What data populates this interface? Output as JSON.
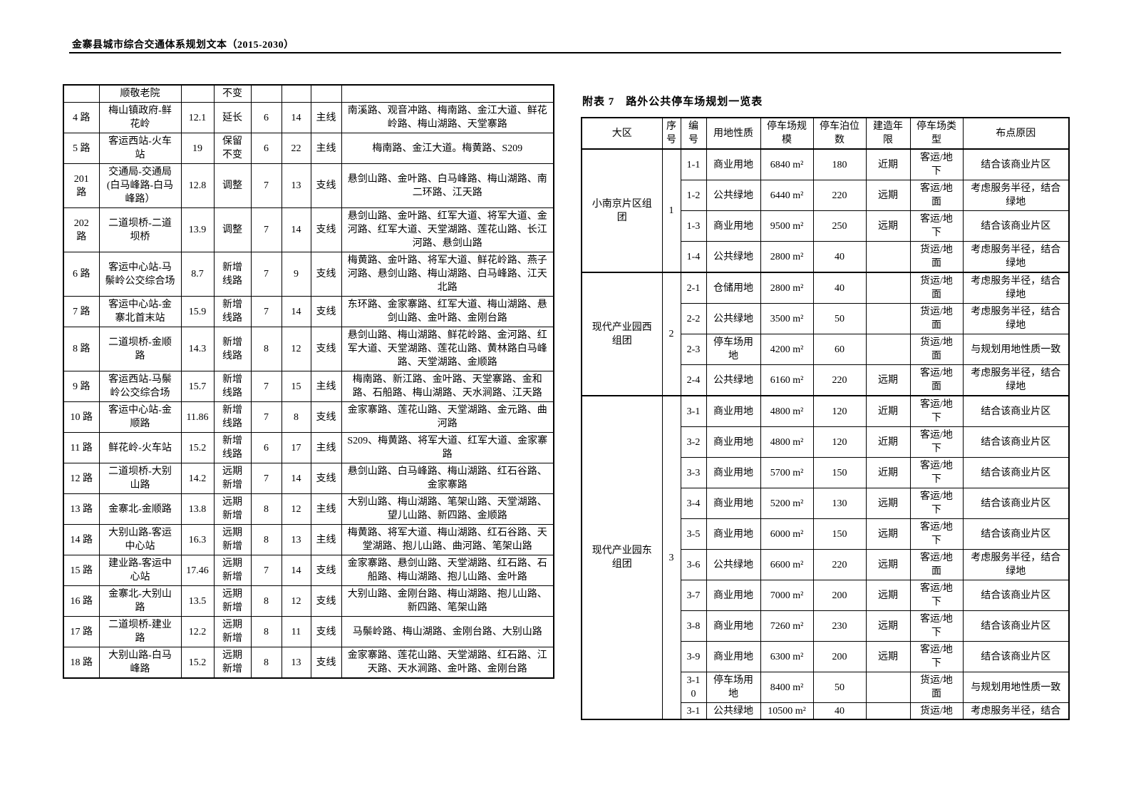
{
  "page": {
    "header_title": "金寨县城市综合交通体系规划文本（2015-2030）"
  },
  "bus_table": {
    "carryover_row": [
      "",
      "顺敬老院",
      "",
      "不变",
      "",
      "",
      "",
      ""
    ],
    "rows": [
      [
        "4 路",
        "梅山镇政府-鲜\n花岭",
        "12.1",
        "延长",
        "6",
        "14",
        "主线",
        "南溪路、观音冲路、梅南路、金江大道、鲜花岭路、梅山湖路、天堂寨路"
      ],
      [
        "5 路",
        "客运西站-火车\n站",
        "19",
        "保留\n不变",
        "6",
        "22",
        "主线",
        "梅南路、金江大道。梅黄路、S209"
      ],
      [
        "201\n路",
        "交通局-交通局\n(白马峰路-白马\n峰路）",
        "12.8",
        "调整",
        "7",
        "13",
        "支线",
        "悬剑山路、金叶路、白马峰路、梅山湖路、南二环路、江天路"
      ],
      [
        "202\n路",
        "二道坝桥-二道\n坝桥",
        "13.9",
        "调整",
        "7",
        "14",
        "支线",
        "悬剑山路、金叶路、红军大道、将军大道、金河路、红军大道、天堂湖路、莲花山路、长江河路、悬剑山路"
      ],
      [
        "6 路",
        "客运中心站-马\n鬃岭公交综合场",
        "8.7",
        "新增\n线路",
        "7",
        "9",
        "支线",
        "梅黄路、金叶路、将军大道、鲜花岭路、燕子河路、悬剑山路、梅山湖路、白马峰路、江天北路"
      ],
      [
        "7 路",
        "客运中心站-金\n寨北首末站",
        "15.9",
        "新增\n线路",
        "7",
        "14",
        "支线",
        "东环路、金家寨路、红军大道、梅山湖路、悬剑山路、金叶路、金刚台路"
      ],
      [
        "8 路",
        "二道坝桥-金顺\n路",
        "14.3",
        "新增\n线路",
        "8",
        "12",
        "支线",
        "悬剑山路、梅山湖路、鲜花岭路、金河路、红军大道、天堂湖路、莲花山路、黄林路白马峰路、天堂湖路、金顺路"
      ],
      [
        "9 路",
        "客运西站-马鬃\n岭公交综合场",
        "15.7",
        "新增\n线路",
        "7",
        "15",
        "主线",
        "梅南路、新江路、金叶路、天堂寨路、金和路、石船路、梅山湖路、天水涧路、江天路"
      ],
      [
        "10 路",
        "客运中心站-金\n顺路",
        "11.86",
        "新增\n线路",
        "7",
        "8",
        "支线",
        "金家寨路、莲花山路、天堂湖路、金元路、曲河路"
      ],
      [
        "11 路",
        "鲜花岭-火车站",
        "15.2",
        "新增\n线路",
        "6",
        "17",
        "主线",
        "S209、梅黄路、将军大道、红军大道、金家寨路"
      ],
      [
        "12 路",
        "二道坝桥-大别\n山路",
        "14.2",
        "远期\n新增",
        "7",
        "14",
        "支线",
        "悬剑山路、白马峰路、梅山湖路、红石谷路、金家寨路"
      ],
      [
        "13 路",
        "金寨北-金顺路",
        "13.8",
        "远期\n新增",
        "8",
        "12",
        "主线",
        "大别山路、梅山湖路、笔架山路、天堂湖路、望儿山路、新四路、金顺路"
      ],
      [
        "14 路",
        "大别山路-客运\n中心站",
        "16.3",
        "远期\n新增",
        "8",
        "13",
        "主线",
        "梅黄路、将军大道、梅山湖路、红石谷路、天堂湖路、抱儿山路、曲河路、笔架山路"
      ],
      [
        "15 路",
        "建业路-客运中\n心站",
        "17.46",
        "远期\n新增",
        "7",
        "14",
        "支线",
        "金家寨路、悬剑山路、天堂湖路、红石路、石船路、梅山湖路、抱儿山路、金叶路"
      ],
      [
        "16 路",
        "金寨北-大别山\n路",
        "13.5",
        "远期\n新增",
        "8",
        "12",
        "支线",
        "大别山路、金刚台路、梅山湖路、抱儿山路、新四路、笔架山路"
      ],
      [
        "17 路",
        "二道坝桥-建业\n路",
        "12.2",
        "远期\n新增",
        "8",
        "11",
        "支线",
        "马鬃岭路、梅山湖路、金刚台路、大别山路"
      ],
      [
        "18 路",
        "大别山路-白马\n峰路",
        "15.2",
        "远期\n新增",
        "8",
        "13",
        "支线",
        "金家寨路、莲花山路、天堂湖路、红石路、江天路、天水涧路、金叶路、金刚台路"
      ]
    ]
  },
  "parking_table": {
    "title": "附表 7　路外公共停车场规划一览表",
    "headers": [
      "大区",
      "序\n号",
      "编\n号",
      "用地性质",
      "停车场规\n模",
      "停车泊位\n数",
      "建造年\n限",
      "停车场类\n型",
      "布点原因"
    ],
    "groups": [
      {
        "district": "小南京片区组\n团",
        "seq": "1",
        "rows": [
          [
            "1-1",
            "商业用地",
            "6840 m²",
            "180",
            "近期",
            "客运/地\n下",
            "结合该商业片区"
          ],
          [
            "1-2",
            "公共绿地",
            "6440 m²",
            "220",
            "远期",
            "客运/地\n面",
            "考虑服务半径，结合\n绿地"
          ],
          [
            "1-3",
            "商业用地",
            "9500 m²",
            "250",
            "远期",
            "客运/地\n下",
            "结合该商业片区"
          ],
          [
            "1-4",
            "公共绿地",
            "2800 m²",
            "40",
            "",
            "货运/地\n面",
            "考虑服务半径，结合\n绿地"
          ]
        ]
      },
      {
        "district": "现代产业园西\n组团",
        "seq": "2",
        "rows": [
          [
            "2-1",
            "仓储用地",
            "2800 m²",
            "40",
            "",
            "货运/地\n面",
            "考虑服务半径，结合\n绿地"
          ],
          [
            "2-2",
            "公共绿地",
            "3500 m²",
            "50",
            "",
            "货运/地\n面",
            "考虑服务半径，结合\n绿地"
          ],
          [
            "2-3",
            "停车场用\n地",
            "4200 m²",
            "60",
            "",
            "货运/地\n面",
            "与规划用地性质一致"
          ],
          [
            "2-4",
            "公共绿地",
            "6160 m²",
            "220",
            "远期",
            "客运/地\n面",
            "考虑服务半径，结合\n绿地"
          ]
        ]
      },
      {
        "district": "现代产业园东\n组团",
        "seq": "3",
        "clipped_last_row": true,
        "rows": [
          [
            "3-1",
            "商业用地",
            "4800 m²",
            "120",
            "近期",
            "客运/地\n下",
            "结合该商业片区"
          ],
          [
            "3-2",
            "商业用地",
            "4800 m²",
            "120",
            "近期",
            "客运/地\n下",
            "结合该商业片区"
          ],
          [
            "3-3",
            "商业用地",
            "5700 m²",
            "150",
            "近期",
            "客运/地\n下",
            "结合该商业片区"
          ],
          [
            "3-4",
            "商业用地",
            "5200 m²",
            "130",
            "远期",
            "客运/地\n下",
            "结合该商业片区"
          ],
          [
            "3-5",
            "商业用地",
            "6000 m²",
            "150",
            "远期",
            "客运/地\n下",
            "结合该商业片区"
          ],
          [
            "3-6",
            "公共绿地",
            "6600 m²",
            "220",
            "远期",
            "客运/地\n面",
            "考虑服务半径，结合\n绿地"
          ],
          [
            "3-7",
            "商业用地",
            "7000 m²",
            "200",
            "远期",
            "客运/地\n下",
            "结合该商业片区"
          ],
          [
            "3-8",
            "商业用地",
            "7260 m²",
            "230",
            "远期",
            "客运/地\n下",
            "结合该商业片区"
          ],
          [
            "3-9",
            "商业用地",
            "6300 m²",
            "200",
            "远期",
            "客运/地\n下",
            "结合该商业片区"
          ],
          [
            "3-1\n0",
            "停车场用\n地",
            "8400 m²",
            "50",
            "",
            "货运/地\n面",
            "与规划用地性质一致"
          ],
          [
            "3-1",
            "公共绿地",
            "10500 m²",
            "40",
            "",
            "货运/地",
            "考虑服务半径，结合"
          ]
        ]
      }
    ]
  }
}
